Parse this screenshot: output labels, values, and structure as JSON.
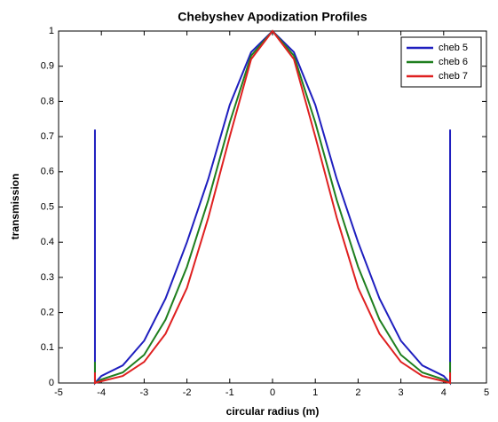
{
  "chart_data": {
    "type": "line",
    "title": "Chebyshev Apodization Profiles",
    "x_label": "circular radius (m)",
    "y_label": "transmission",
    "x": [
      -4.15,
      -4.15,
      -4,
      -3.5,
      -3,
      -2.5,
      -2,
      -1.5,
      -1,
      -0.5,
      0,
      0.5,
      1,
      1.5,
      2,
      2.5,
      3,
      3.5,
      4,
      4.15,
      4.15
    ],
    "series": [
      {
        "name": "cheb 5",
        "color": "#1f1fbf",
        "values": [
          0.72,
          0,
          0.02,
          0.05,
          0.12,
          0.24,
          0.4,
          0.58,
          0.79,
          0.94,
          1,
          0.94,
          0.79,
          0.58,
          0.4,
          0.24,
          0.12,
          0.05,
          0.02,
          0,
          0.72
        ]
      },
      {
        "name": "cheb 6",
        "color": "#1f7f1f",
        "values": [
          0.06,
          0,
          0.01,
          0.03,
          0.08,
          0.18,
          0.33,
          0.52,
          0.74,
          0.93,
          1,
          0.93,
          0.74,
          0.52,
          0.33,
          0.18,
          0.08,
          0.03,
          0.01,
          0,
          0.06
        ]
      },
      {
        "name": "cheb 7",
        "color": "#df2020",
        "values": [
          0.03,
          0,
          0.005,
          0.02,
          0.06,
          0.14,
          0.27,
          0.47,
          0.7,
          0.92,
          1,
          0.92,
          0.7,
          0.47,
          0.27,
          0.14,
          0.06,
          0.02,
          0.005,
          0,
          0.03
        ]
      }
    ],
    "xlim": [
      -5,
      5
    ],
    "xticks": [
      -5,
      -4,
      -3,
      -2,
      -1,
      0,
      1,
      2,
      3,
      4,
      5
    ],
    "ylim": [
      0,
      1
    ],
    "yticks": [
      0,
      0.1,
      0.2,
      0.3,
      0.4,
      0.5,
      0.6,
      0.7,
      0.8,
      0.9,
      1
    ],
    "legend": "top-right",
    "grid": false
  }
}
